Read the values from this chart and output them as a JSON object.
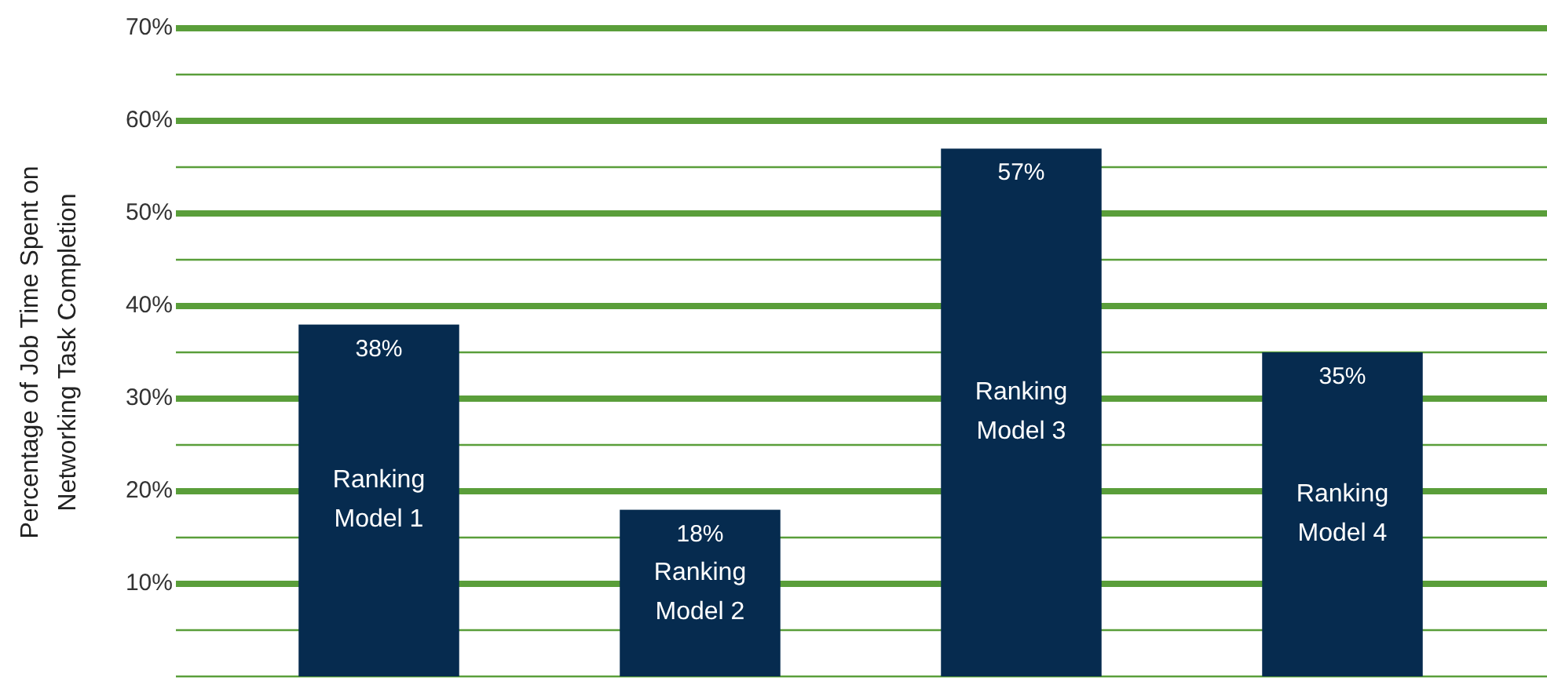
{
  "chart_data": {
    "type": "bar",
    "ylabel": "Percentage of Job Time Spent on Networking Task Completion",
    "categories": [
      "Ranking Model 1",
      "Ranking Model 2",
      "Ranking Model 3",
      "Ranking Model 4"
    ],
    "values": [
      38,
      18,
      57,
      35
    ],
    "color": "#062b4f",
    "value_labels": [
      "38%",
      "18%",
      "57%",
      "35%"
    ],
    "ylim": [
      0,
      70
    ],
    "yticks": [
      {
        "value": 0,
        "label": null
      },
      {
        "value": 5,
        "label": null
      },
      {
        "value": 10,
        "label": "10%"
      },
      {
        "value": 15,
        "label": null
      },
      {
        "value": 20,
        "label": "20%"
      },
      {
        "value": 25,
        "label": null
      },
      {
        "value": 30,
        "label": "30%"
      },
      {
        "value": 35,
        "label": null
      },
      {
        "value": 40,
        "label": "40%"
      },
      {
        "value": 45,
        "label": null
      },
      {
        "value": 50,
        "label": "50%"
      },
      {
        "value": 55,
        "label": null
      },
      {
        "value": 60,
        "label": "60%"
      },
      {
        "value": 65,
        "label": null
      },
      {
        "value": 70,
        "label": "70%"
      }
    ],
    "grid": true
  }
}
